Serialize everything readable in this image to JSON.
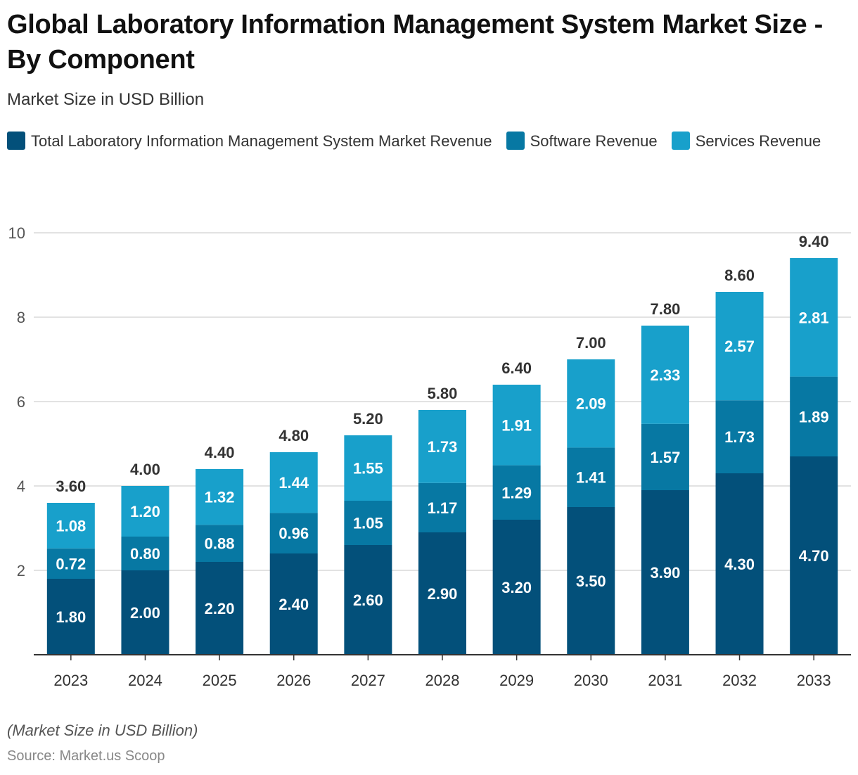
{
  "title": "Global Laboratory Information Management System Market Size - By Component",
  "subtitle": "Market Size in USD Billion",
  "note": "(Market Size in USD Billion)",
  "source": "Source: Market.us Scoop",
  "colors": {
    "total": "#03507a",
    "software": "#0778a3",
    "services": "#18a0cb",
    "grid": "#d9d9d9",
    "axis": "#333333",
    "tick_text": "#555555",
    "total_label": "#333333"
  },
  "chart_data": {
    "type": "bar",
    "stacked": true,
    "categories": [
      "2023",
      "2024",
      "2025",
      "2026",
      "2027",
      "2028",
      "2029",
      "2030",
      "2031",
      "2032",
      "2033"
    ],
    "series": [
      {
        "name": "Total Laboratory Information Management System Market Revenue",
        "values": [
          1.8,
          2.0,
          2.2,
          2.4,
          2.6,
          2.9,
          3.2,
          3.5,
          3.9,
          4.3,
          4.7
        ],
        "labels": [
          "1.80",
          "2.00",
          "2.20",
          "2.40",
          "2.60",
          "2.90",
          "3.20",
          "3.50",
          "3.90",
          "4.30",
          "4.70"
        ]
      },
      {
        "name": "Software Revenue",
        "values": [
          0.72,
          0.8,
          0.88,
          0.96,
          1.05,
          1.17,
          1.29,
          1.41,
          1.57,
          1.73,
          1.89
        ],
        "labels": [
          "0.72",
          "0.80",
          "0.88",
          "0.96",
          "1.05",
          "1.17",
          "1.29",
          "1.41",
          "1.57",
          "1.73",
          "1.89"
        ]
      },
      {
        "name": "Services Revenue",
        "values": [
          1.08,
          1.2,
          1.32,
          1.44,
          1.55,
          1.73,
          1.91,
          2.09,
          2.33,
          2.57,
          2.81
        ],
        "labels": [
          "1.08",
          "1.20",
          "1.32",
          "1.44",
          "1.55",
          "1.73",
          "1.91",
          "2.09",
          "2.33",
          "2.57",
          "2.81"
        ]
      }
    ],
    "totals": [
      3.6,
      4.0,
      4.4,
      4.8,
      5.2,
      5.8,
      6.4,
      7.0,
      7.8,
      8.6,
      9.4
    ],
    "total_labels": [
      "3.60",
      "4.00",
      "4.40",
      "4.80",
      "5.20",
      "5.80",
      "6.40",
      "7.00",
      "7.80",
      "8.60",
      "9.40"
    ],
    "y_ticks": [
      "2",
      "4",
      "6",
      "8",
      "10"
    ],
    "ylim": [
      0,
      10
    ],
    "grid": true,
    "legend_position": "top-left"
  }
}
